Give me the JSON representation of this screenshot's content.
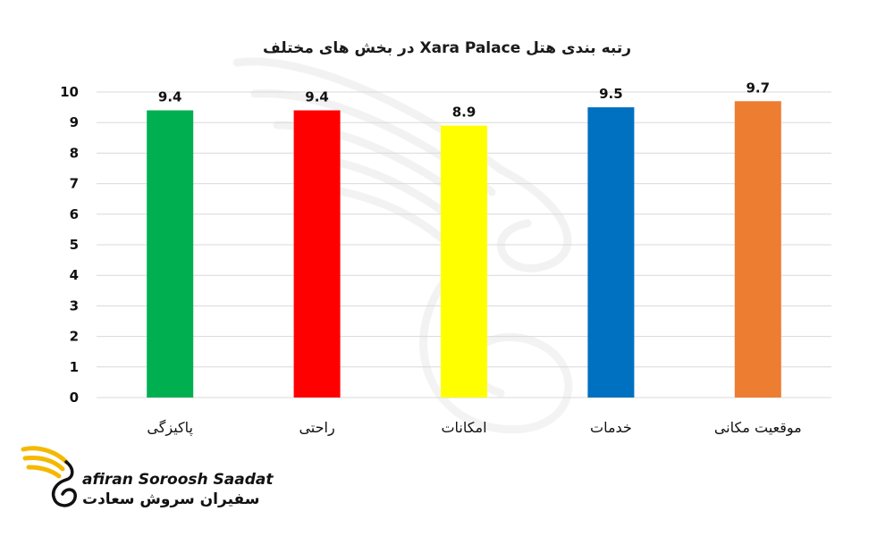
{
  "chart_data": {
    "type": "bar",
    "title": "رتبه بندی هتل Xara Palace در بخش های مختلف",
    "xlabel": "",
    "ylabel": "",
    "categories": [
      "پاکیزگی",
      "راحتی",
      "امکانات",
      "خدمات",
      "موقعیت مکانی"
    ],
    "values": [
      9.4,
      9.4,
      8.9,
      9.5,
      9.7
    ],
    "data_labels": [
      "9.4",
      "9.4",
      "8.9",
      "9.5",
      "9.7"
    ],
    "bar_colors": [
      "#00b050",
      "#ff0000",
      "#ffff00",
      "#0070c0",
      "#ed7d31"
    ],
    "ylim": [
      0,
      10
    ],
    "yticks": [
      0,
      1,
      2,
      3,
      4,
      5,
      6,
      7,
      8,
      9,
      10
    ],
    "grid": true,
    "legend": "none"
  },
  "logo": {
    "name_en": "afiran Soroosh Saadat",
    "name_fa": "سفیران سروش سعادت",
    "accent_color": "#f5b800",
    "icon": "winged-s-icon"
  },
  "watermark": {
    "icon": "winged-s-watermark-icon"
  }
}
